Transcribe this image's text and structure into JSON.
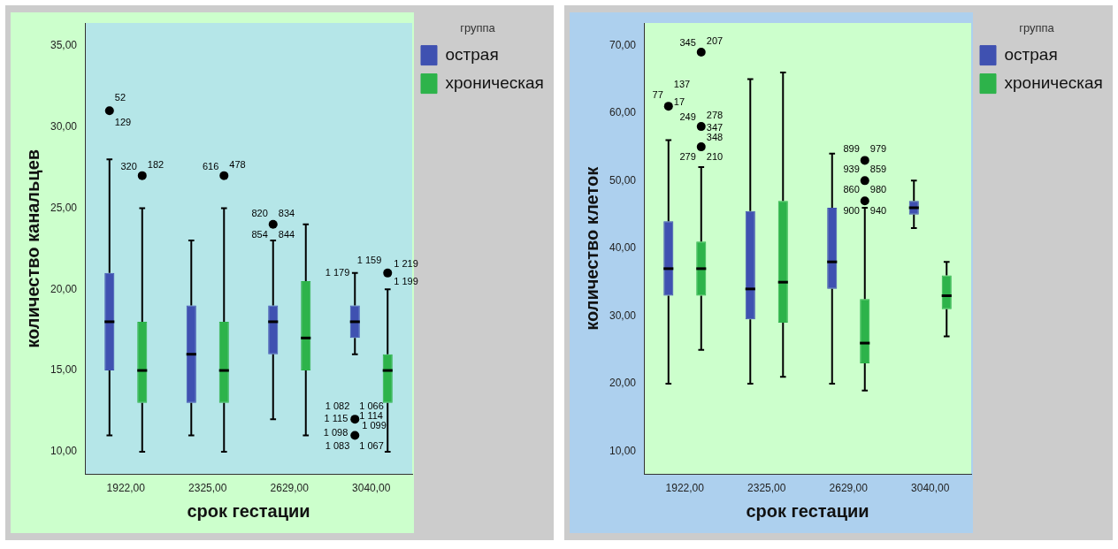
{
  "chart_data": [
    {
      "type": "box",
      "xlabel": "срок гестации",
      "ylabel": "количество канальцев",
      "legend_title": "группа",
      "legend": "top right",
      "categories": [
        "1922,00",
        "2325,00",
        "2629,00",
        "3040,00"
      ],
      "ylim": [
        8.6,
        36.4
      ],
      "yticks": [
        {
          "value": 10,
          "label": "10,00"
        },
        {
          "value": 15,
          "label": "15,00"
        },
        {
          "value": 20,
          "label": "20,00"
        },
        {
          "value": 25,
          "label": "25,00"
        },
        {
          "value": 30,
          "label": "30,00"
        },
        {
          "value": 35,
          "label": "35,00"
        }
      ],
      "series": [
        {
          "name": "острая",
          "color": "#3f51b1",
          "boxes": [
            {
              "low": 11,
              "q1": 15,
              "median": 18,
              "q3": 21,
              "high": 28,
              "outliers": [
                31
              ]
            },
            {
              "low": 11,
              "q1": 13,
              "median": 16,
              "q3": 19,
              "high": 23
            },
            {
              "low": 12,
              "q1": 16,
              "median": 18,
              "q3": 19,
              "high": 23,
              "outliers": [
                24
              ]
            },
            {
              "low": 16,
              "q1": 17,
              "median": 18,
              "q3": 19,
              "high": 21,
              "outliers": [
                12,
                11
              ]
            }
          ]
        },
        {
          "name": "хроническая",
          "color": "#2db34a",
          "boxes": [
            {
              "low": 10,
              "q1": 13,
              "median": 15,
              "q3": 18,
              "high": 25,
              "outliers": [
                27
              ]
            },
            {
              "low": 10,
              "q1": 13,
              "median": 15,
              "q3": 18,
              "high": 25,
              "outliers": [
                27
              ]
            },
            {
              "low": 11,
              "q1": 15,
              "median": 17,
              "q3": 20.5,
              "high": 24
            },
            {
              "low": 10,
              "q1": 13,
              "median": 15,
              "q3": 16,
              "high": 20,
              "outliers": [
                21
              ]
            }
          ]
        }
      ],
      "annotations": [
        "52",
        "129",
        "320",
        "182",
        "616",
        "478",
        "820",
        "834",
        "854",
        "844",
        "1 159",
        "1 179",
        "1 199",
        "1 219",
        "1 082",
        "1 066",
        "1 115",
        "1 114",
        "1 099",
        "1 098",
        "1 083",
        "1 067"
      ]
    },
    {
      "type": "box",
      "xlabel": "срок гестации",
      "ylabel": "количество клеток",
      "legend_title": "группа",
      "legend": "top right",
      "categories": [
        "1922,00",
        "2325,00",
        "2629,00",
        "3040,00"
      ],
      "ylim": [
        6.6,
        73.3
      ],
      "yticks": [
        {
          "value": 10,
          "label": "10,00"
        },
        {
          "value": 20,
          "label": "20,00"
        },
        {
          "value": 30,
          "label": "30,00"
        },
        {
          "value": 40,
          "label": "40,00"
        },
        {
          "value": 50,
          "label": "50,00"
        },
        {
          "value": 60,
          "label": "60,00"
        },
        {
          "value": 70,
          "label": "70,00"
        }
      ],
      "series": [
        {
          "name": "острая",
          "color": "#3f51b1",
          "boxes": [
            {
              "low": 20,
              "q1": 33,
              "median": 37,
              "q3": 44,
              "high": 56,
              "outliers": [
                61
              ]
            },
            {
              "low": 20,
              "q1": 29.5,
              "median": 34,
              "q3": 45.5,
              "high": 65
            },
            {
              "low": 20,
              "q1": 34,
              "median": 38,
              "q3": 46,
              "high": 54
            },
            {
              "low": 43,
              "q1": 45,
              "median": 46,
              "q3": 47,
              "high": 50
            }
          ]
        },
        {
          "name": "хроническая",
          "color": "#2db34a",
          "boxes": [
            {
              "low": 25,
              "q1": 33,
              "median": 37,
              "q3": 41,
              "high": 52,
              "outliers": [
                69,
                58,
                55
              ]
            },
            {
              "low": 21,
              "q1": 29,
              "median": 35,
              "q3": 47,
              "high": 66
            },
            {
              "low": 19,
              "q1": 23,
              "median": 26,
              "q3": 32.5,
              "high": 46,
              "outliers": [
                53,
                50,
                47
              ]
            },
            {
              "low": 27,
              "q1": 31,
              "median": 33,
              "q3": 36,
              "high": 38
            }
          ]
        }
      ],
      "annotations": [
        "345",
        "207",
        "77",
        "137",
        "17",
        "249",
        "278",
        "347",
        "348",
        "279",
        "210",
        "899",
        "979",
        "939",
        "859",
        "860",
        "980",
        "900",
        "940"
      ]
    }
  ]
}
